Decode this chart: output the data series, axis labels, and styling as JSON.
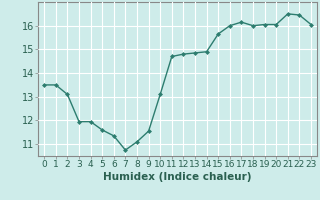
{
  "x": [
    0,
    1,
    2,
    3,
    4,
    5,
    6,
    7,
    8,
    9,
    10,
    11,
    12,
    13,
    14,
    15,
    16,
    17,
    18,
    19,
    20,
    21,
    22,
    23
  ],
  "y": [
    13.5,
    13.5,
    13.1,
    11.95,
    11.95,
    11.6,
    11.35,
    10.75,
    11.1,
    11.55,
    13.1,
    14.7,
    14.8,
    14.85,
    14.9,
    15.65,
    16.0,
    16.15,
    16.0,
    16.05,
    16.05,
    16.5,
    16.45,
    16.05
  ],
  "xlabel": "Humidex (Indice chaleur)",
  "line_color": "#2d7d6f",
  "marker_color": "#2d7d6f",
  "bg_color": "#ceecea",
  "grid_color": "#ffffff",
  "axis_color": "#888888",
  "ylim": [
    10.5,
    17.0
  ],
  "yticks": [
    11,
    12,
    13,
    14,
    15,
    16
  ],
  "xticks": [
    0,
    1,
    2,
    3,
    4,
    5,
    6,
    7,
    8,
    9,
    10,
    11,
    12,
    13,
    14,
    15,
    16,
    17,
    18,
    19,
    20,
    21,
    22,
    23
  ],
  "xlabel_fontsize": 7.5,
  "tick_fontsize": 6.5,
  "ytick_fontsize": 7.0
}
